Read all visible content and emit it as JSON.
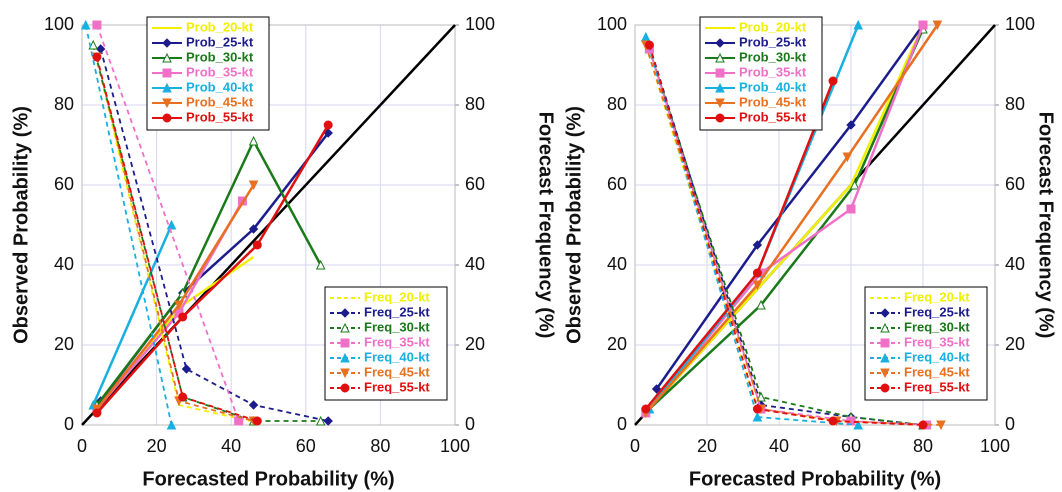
{
  "chart_data": [
    {
      "type": "line",
      "x_label": "Forecasted Probability (%)",
      "y_label": "Observed Probability (%)",
      "y2_label": "Forecast Frequency (%)",
      "xlim": [
        0,
        100
      ],
      "ylim": [
        0,
        100
      ],
      "y2lim": [
        0,
        100
      ],
      "xticks": [
        0,
        20,
        40,
        60,
        80,
        100
      ],
      "yticks": [
        0,
        20,
        40,
        60,
        80,
        100
      ],
      "y2ticks": [
        0,
        20,
        40,
        60,
        80,
        100
      ],
      "grid": true,
      "diagonal": true,
      "legend_y": "upper left",
      "legend_y2": "lower right",
      "series": [
        {
          "name": "Prob_20-kt",
          "color": "#f0f000",
          "marker": "none",
          "linestyle": "solid",
          "x": [
            4,
            27,
            46
          ],
          "values": [
            4,
            30,
            42
          ]
        },
        {
          "name": "Prob_25-kt",
          "color": "#1c1c8c",
          "marker": "diamond",
          "linestyle": "solid",
          "x": [
            5,
            27,
            46,
            66
          ],
          "values": [
            6,
            33,
            49,
            73
          ]
        },
        {
          "name": "Prob_30-kt",
          "color": "#1a7a1a",
          "marker": "triangle-open",
          "linestyle": "solid",
          "x": [
            4,
            27,
            46,
            64
          ],
          "values": [
            5,
            33,
            71,
            40
          ]
        },
        {
          "name": "Prob_35-kt",
          "color": "#f070c8",
          "marker": "square",
          "linestyle": "solid",
          "x": [
            4,
            26,
            43
          ],
          "values": [
            4,
            28,
            56
          ]
        },
        {
          "name": "Prob_40-kt",
          "color": "#18b0e0",
          "marker": "triangle",
          "linestyle": "solid",
          "x": [
            3,
            24
          ],
          "values": [
            5,
            50
          ]
        },
        {
          "name": "Prob_45-kt",
          "color": "#e87020",
          "marker": "triangle-down",
          "linestyle": "solid",
          "x": [
            4,
            26,
            46
          ],
          "values": [
            4,
            30,
            60
          ]
        },
        {
          "name": "Prob_55-kt",
          "color": "#e01010",
          "marker": "circle",
          "linestyle": "solid",
          "x": [
            4,
            27,
            47,
            66
          ],
          "values": [
            3,
            27,
            45,
            75
          ]
        },
        {
          "name": "Freq_20-kt",
          "color": "#f0f000",
          "marker": "none",
          "linestyle": "dashed",
          "axis": "y2",
          "x": [
            3,
            26,
            45
          ],
          "values": [
            95,
            5,
            1
          ]
        },
        {
          "name": "Freq_25-kt",
          "color": "#1c1c8c",
          "marker": "diamond",
          "linestyle": "dashed",
          "axis": "y2",
          "x": [
            5,
            28,
            46,
            66
          ],
          "values": [
            94,
            14,
            5,
            1
          ]
        },
        {
          "name": "Freq_30-kt",
          "color": "#1a7a1a",
          "marker": "triangle-open",
          "linestyle": "dashed",
          "axis": "y2",
          "x": [
            3,
            27,
            46,
            64
          ],
          "values": [
            95,
            7,
            1,
            1
          ]
        },
        {
          "name": "Freq_35-kt",
          "color": "#f070c8",
          "marker": "square",
          "linestyle": "dashed",
          "axis": "y2",
          "x": [
            4,
            42
          ],
          "values": [
            100,
            1
          ]
        },
        {
          "name": "Freq_40-kt",
          "color": "#18b0e0",
          "marker": "triangle",
          "linestyle": "dashed",
          "axis": "y2",
          "x": [
            1,
            24
          ],
          "values": [
            100,
            0
          ]
        },
        {
          "name": "Freq_45-kt",
          "color": "#e87020",
          "marker": "triangle-down",
          "linestyle": "dashed",
          "axis": "y2",
          "x": [
            4,
            26,
            46
          ],
          "values": [
            92,
            6,
            1
          ]
        },
        {
          "name": "Freq_55-kt",
          "color": "#e01010",
          "marker": "circle",
          "linestyle": "dashed",
          "axis": "y2",
          "x": [
            4,
            27,
            47
          ],
          "values": [
            92,
            7,
            1
          ]
        }
      ]
    },
    {
      "type": "line",
      "x_label": "Forecasted Probability (%)",
      "y_label": "Observed Probability (%)",
      "y2_label": "Forecast Frequency (%)",
      "xlim": [
        0,
        100
      ],
      "ylim": [
        0,
        100
      ],
      "y2lim": [
        0,
        100
      ],
      "xticks": [
        0,
        20,
        40,
        60,
        80,
        100
      ],
      "yticks": [
        0,
        20,
        40,
        60,
        80,
        100
      ],
      "y2ticks": [
        0,
        20,
        40,
        60,
        80,
        100
      ],
      "grid": true,
      "diagonal": true,
      "legend_y": "upper left",
      "legend_y2": "lower right",
      "series": [
        {
          "name": "Prob_20-kt",
          "color": "#f0f000",
          "marker": "none",
          "linestyle": "solid",
          "x": [
            3,
            35,
            60,
            80
          ],
          "values": [
            3,
            35,
            60,
            100
          ]
        },
        {
          "name": "Prob_25-kt",
          "color": "#1c1c8c",
          "marker": "diamond",
          "linestyle": "solid",
          "x": [
            6,
            34,
            60,
            80
          ],
          "values": [
            9,
            45,
            75,
            100
          ]
        },
        {
          "name": "Prob_30-kt",
          "color": "#1a7a1a",
          "marker": "triangle-open",
          "linestyle": "solid",
          "x": [
            4,
            35,
            61,
            80
          ],
          "values": [
            4,
            30,
            60,
            99
          ]
        },
        {
          "name": "Prob_35-kt",
          "color": "#f070c8",
          "marker": "square",
          "linestyle": "solid",
          "x": [
            3,
            35,
            60,
            80
          ],
          "values": [
            3,
            38,
            54,
            100
          ]
        },
        {
          "name": "Prob_40-kt",
          "color": "#18b0e0",
          "marker": "triangle",
          "linestyle": "solid",
          "x": [
            4,
            34,
            62
          ],
          "values": [
            4,
            38,
            100
          ]
        },
        {
          "name": "Prob_45-kt",
          "color": "#e87020",
          "marker": "triangle-down",
          "linestyle": "solid",
          "x": [
            3,
            34,
            59,
            84
          ],
          "values": [
            3,
            35,
            67,
            100
          ]
        },
        {
          "name": "Prob_55-kt",
          "color": "#e01010",
          "marker": "circle",
          "linestyle": "solid",
          "x": [
            3,
            34,
            55
          ],
          "values": [
            4,
            38,
            86
          ]
        },
        {
          "name": "Freq_20-kt",
          "color": "#f0f000",
          "marker": "none",
          "linestyle": "dashed",
          "axis": "y2",
          "x": [
            3,
            34,
            57,
            80
          ],
          "values": [
            95,
            4,
            1,
            0
          ]
        },
        {
          "name": "Freq_25-kt",
          "color": "#1c1c8c",
          "marker": "diamond",
          "linestyle": "dashed",
          "axis": "y2",
          "x": [
            4,
            35,
            60,
            80
          ],
          "values": [
            95,
            5,
            2,
            0
          ]
        },
        {
          "name": "Freq_30-kt",
          "color": "#1a7a1a",
          "marker": "triangle-open",
          "linestyle": "dashed",
          "axis": "y2",
          "x": [
            4,
            35,
            60,
            80
          ],
          "values": [
            94,
            7,
            2,
            0
          ]
        },
        {
          "name": "Freq_35-kt",
          "color": "#f070c8",
          "marker": "square",
          "linestyle": "dashed",
          "axis": "y2",
          "x": [
            4,
            35,
            60,
            81
          ],
          "values": [
            94,
            4,
            1,
            0
          ]
        },
        {
          "name": "Freq_40-kt",
          "color": "#18b0e0",
          "marker": "triangle",
          "linestyle": "dashed",
          "axis": "y2",
          "x": [
            3,
            34,
            62
          ],
          "values": [
            97,
            2,
            0
          ]
        },
        {
          "name": "Freq_45-kt",
          "color": "#e87020",
          "marker": "triangle-down",
          "linestyle": "dashed",
          "axis": "y2",
          "x": [
            3,
            35,
            56,
            85
          ],
          "values": [
            95,
            4,
            1,
            0
          ]
        },
        {
          "name": "Freq_55-kt",
          "color": "#e01010",
          "marker": "circle",
          "linestyle": "dashed",
          "axis": "y2",
          "x": [
            4,
            34,
            55,
            80
          ],
          "values": [
            95,
            4,
            1,
            0
          ]
        }
      ]
    }
  ]
}
